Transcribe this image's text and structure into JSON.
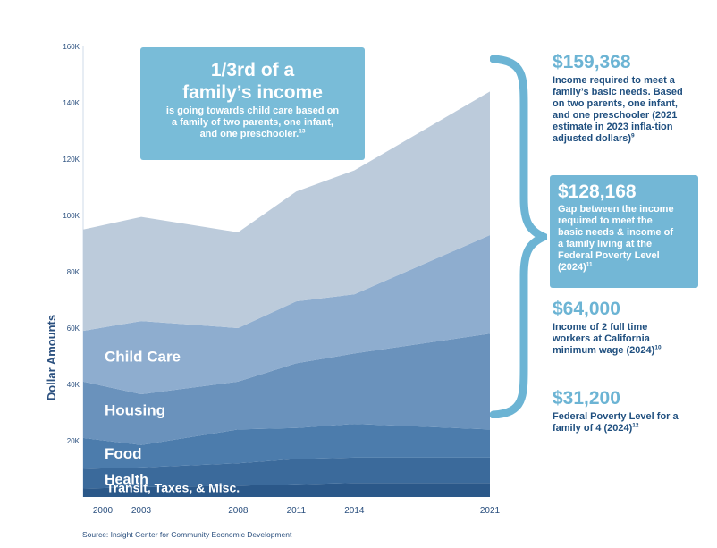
{
  "chart_data": {
    "type": "area",
    "stacked": true,
    "x": [
      2000,
      2003,
      2008,
      2011,
      2014,
      2021
    ],
    "series": [
      {
        "name": "Transit, Taxes, & Misc.",
        "values": [
          3000,
          3500,
          4000,
          4500,
          5000,
          5000
        ],
        "color": "#2b5889"
      },
      {
        "name": "Health",
        "values": [
          7000,
          7000,
          8000,
          9000,
          9000,
          9000
        ],
        "color": "#3b6a9b"
      },
      {
        "name": "Food",
        "values": [
          11000,
          8000,
          12000,
          11000,
          12000,
          10000
        ],
        "color": "#4c7cac"
      },
      {
        "name": "Housing",
        "values": [
          20000,
          18000,
          17000,
          23000,
          25000,
          34000
        ],
        "color": "#6a92bc"
      },
      {
        "name": "Child Care",
        "values": [
          18000,
          26000,
          19000,
          22000,
          21000,
          35000
        ],
        "color": "#8eadcf"
      },
      {
        "name": "",
        "values": [
          36000,
          37000,
          34000,
          39000,
          44000,
          51000
        ],
        "color": "#bccbdb"
      }
    ],
    "ylabel": "Dollar Amounts",
    "ylim": [
      0,
      160000
    ],
    "y_ticks": [
      "20K",
      "40K",
      "60K",
      "80K",
      "100K",
      "120K",
      "140K",
      "160K"
    ],
    "x_ticks": [
      "2000",
      "2003",
      "2008",
      "2011",
      "2014",
      "2021"
    ],
    "legend": "in-chart labels"
  },
  "callout": {
    "headline_line1": "1/3rd of a",
    "headline_line2": "family’s income",
    "text": "is going towards child care based on a family of two parents, one infant, and one preschooler.",
    "note": "13"
  },
  "stats": [
    {
      "amount": "$159,368",
      "text": "Income required to meet a family’s basic needs. Based on two parents, one infant, and one preschooler (2021 estimate in 2023 infla-tion adjusted dollars)",
      "note": "9"
    },
    {
      "amount": "$128,168",
      "text": "Gap between the income required to meet the basic needs & income of a family living at the Federal Poverty Level (2024)",
      "note": "11"
    },
    {
      "amount": "$64,000",
      "text": "Income of 2 full time workers at California minimum wage (2024)",
      "note": "10"
    },
    {
      "amount": "$31,200",
      "text": "Federal Poverty Level for a family of 4 (2024)",
      "note": "12"
    }
  ],
  "source": "Source: Insight Center for Community Economic Development",
  "colors": {
    "accent": "#6cb4d4",
    "text": "#1f4f7f"
  }
}
